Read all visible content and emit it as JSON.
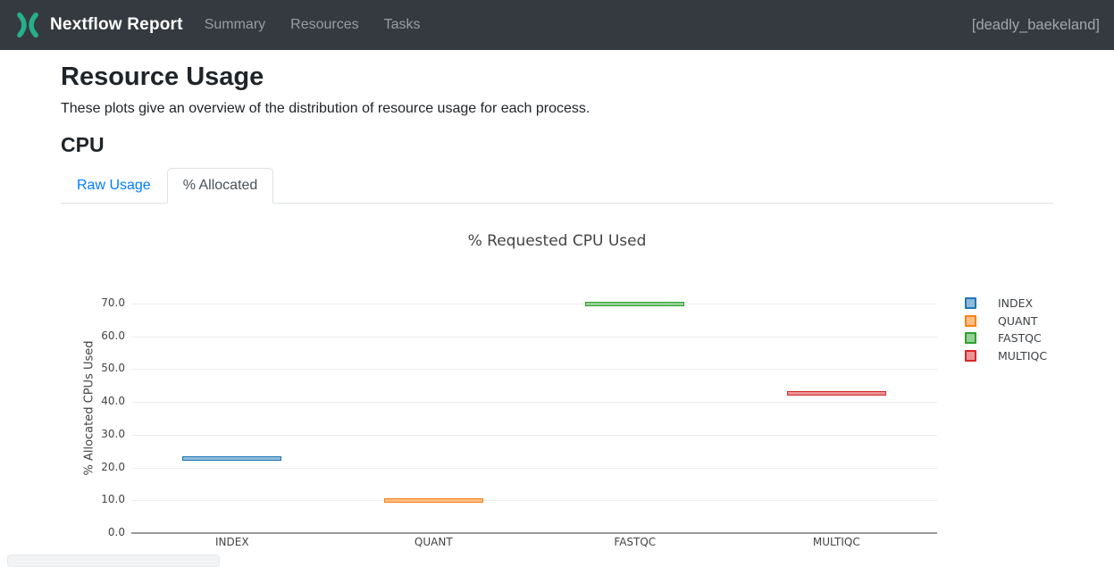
{
  "navbar": {
    "brand": "Nextflow Report",
    "items": [
      {
        "label": "Summary"
      },
      {
        "label": "Resources"
      },
      {
        "label": "Tasks"
      }
    ],
    "run_name": "[deadly_baekeland]",
    "bg_color": "#343a40",
    "logo_color": "#26af8c"
  },
  "page": {
    "title": "Resource Usage",
    "description": "These plots give an overview of the distribution of resource usage for each process.",
    "section_title": "CPU"
  },
  "tabs": [
    {
      "label": "Raw Usage",
      "active": false
    },
    {
      "label": "% Allocated",
      "active": true
    }
  ],
  "chart_data": {
    "type": "box",
    "title": "% Requested CPU Used",
    "xlabel": "",
    "ylabel": "% Allocated CPUs Used",
    "categories": [
      "INDEX",
      "QUANT",
      "FASTQC",
      "MULTIQC"
    ],
    "series": [
      {
        "name": "INDEX",
        "value": 22.8,
        "line_color": "#1f77b4",
        "fill_color": "#8fbbda"
      },
      {
        "name": "QUANT",
        "value": 9.9,
        "line_color": "#ff7f0e",
        "fill_color": "#ffbf87"
      },
      {
        "name": "FASTQC",
        "value": 69.8,
        "line_color": "#2ca02c",
        "fill_color": "#96d096"
      },
      {
        "name": "MULTIQC",
        "value": 42.6,
        "line_color": "#d62728",
        "fill_color": "#eb9394"
      }
    ],
    "ylim": [
      0,
      76
    ],
    "yticks": [
      0,
      10,
      20,
      30,
      40,
      50,
      60,
      70
    ],
    "grid": true,
    "legend_position": "right"
  }
}
